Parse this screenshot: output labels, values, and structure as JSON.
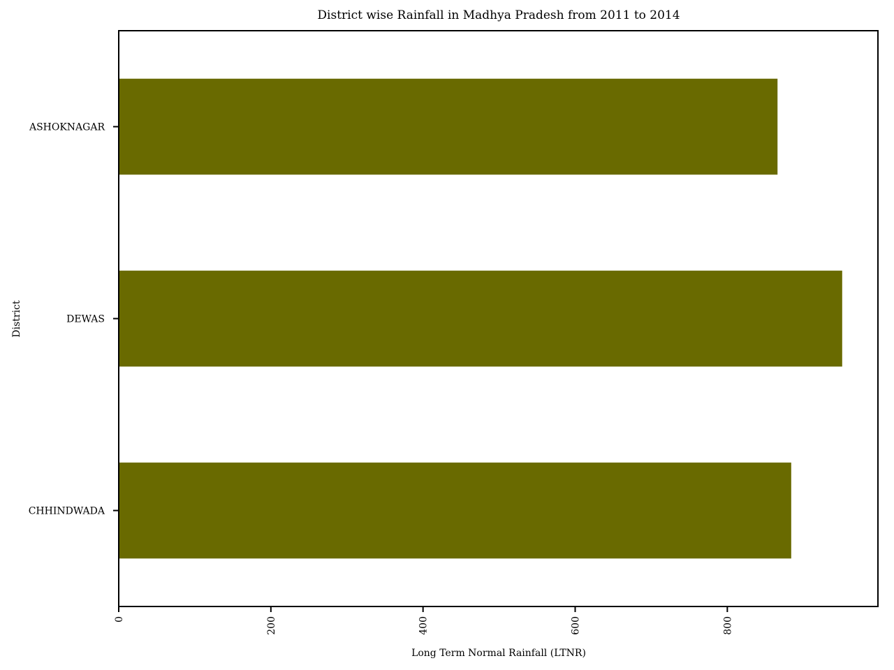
{
  "chart_data": {
    "type": "bar",
    "orientation": "horizontal",
    "title": "District wise Rainfall in Madhya Pradesh from 2011 to 2014",
    "xlabel": "Long Term Normal Rainfall (LTNR)",
    "ylabel": "District",
    "categories": [
      "ASHOKNAGAR",
      "DEWAS",
      "CHHINDWADA"
    ],
    "values": [
      866,
      951,
      884
    ],
    "xlim": [
      0,
      998
    ],
    "xticks": [
      0,
      200,
      400,
      600,
      800
    ],
    "grid": false,
    "legend": "none",
    "bar_color": "#696a00"
  }
}
